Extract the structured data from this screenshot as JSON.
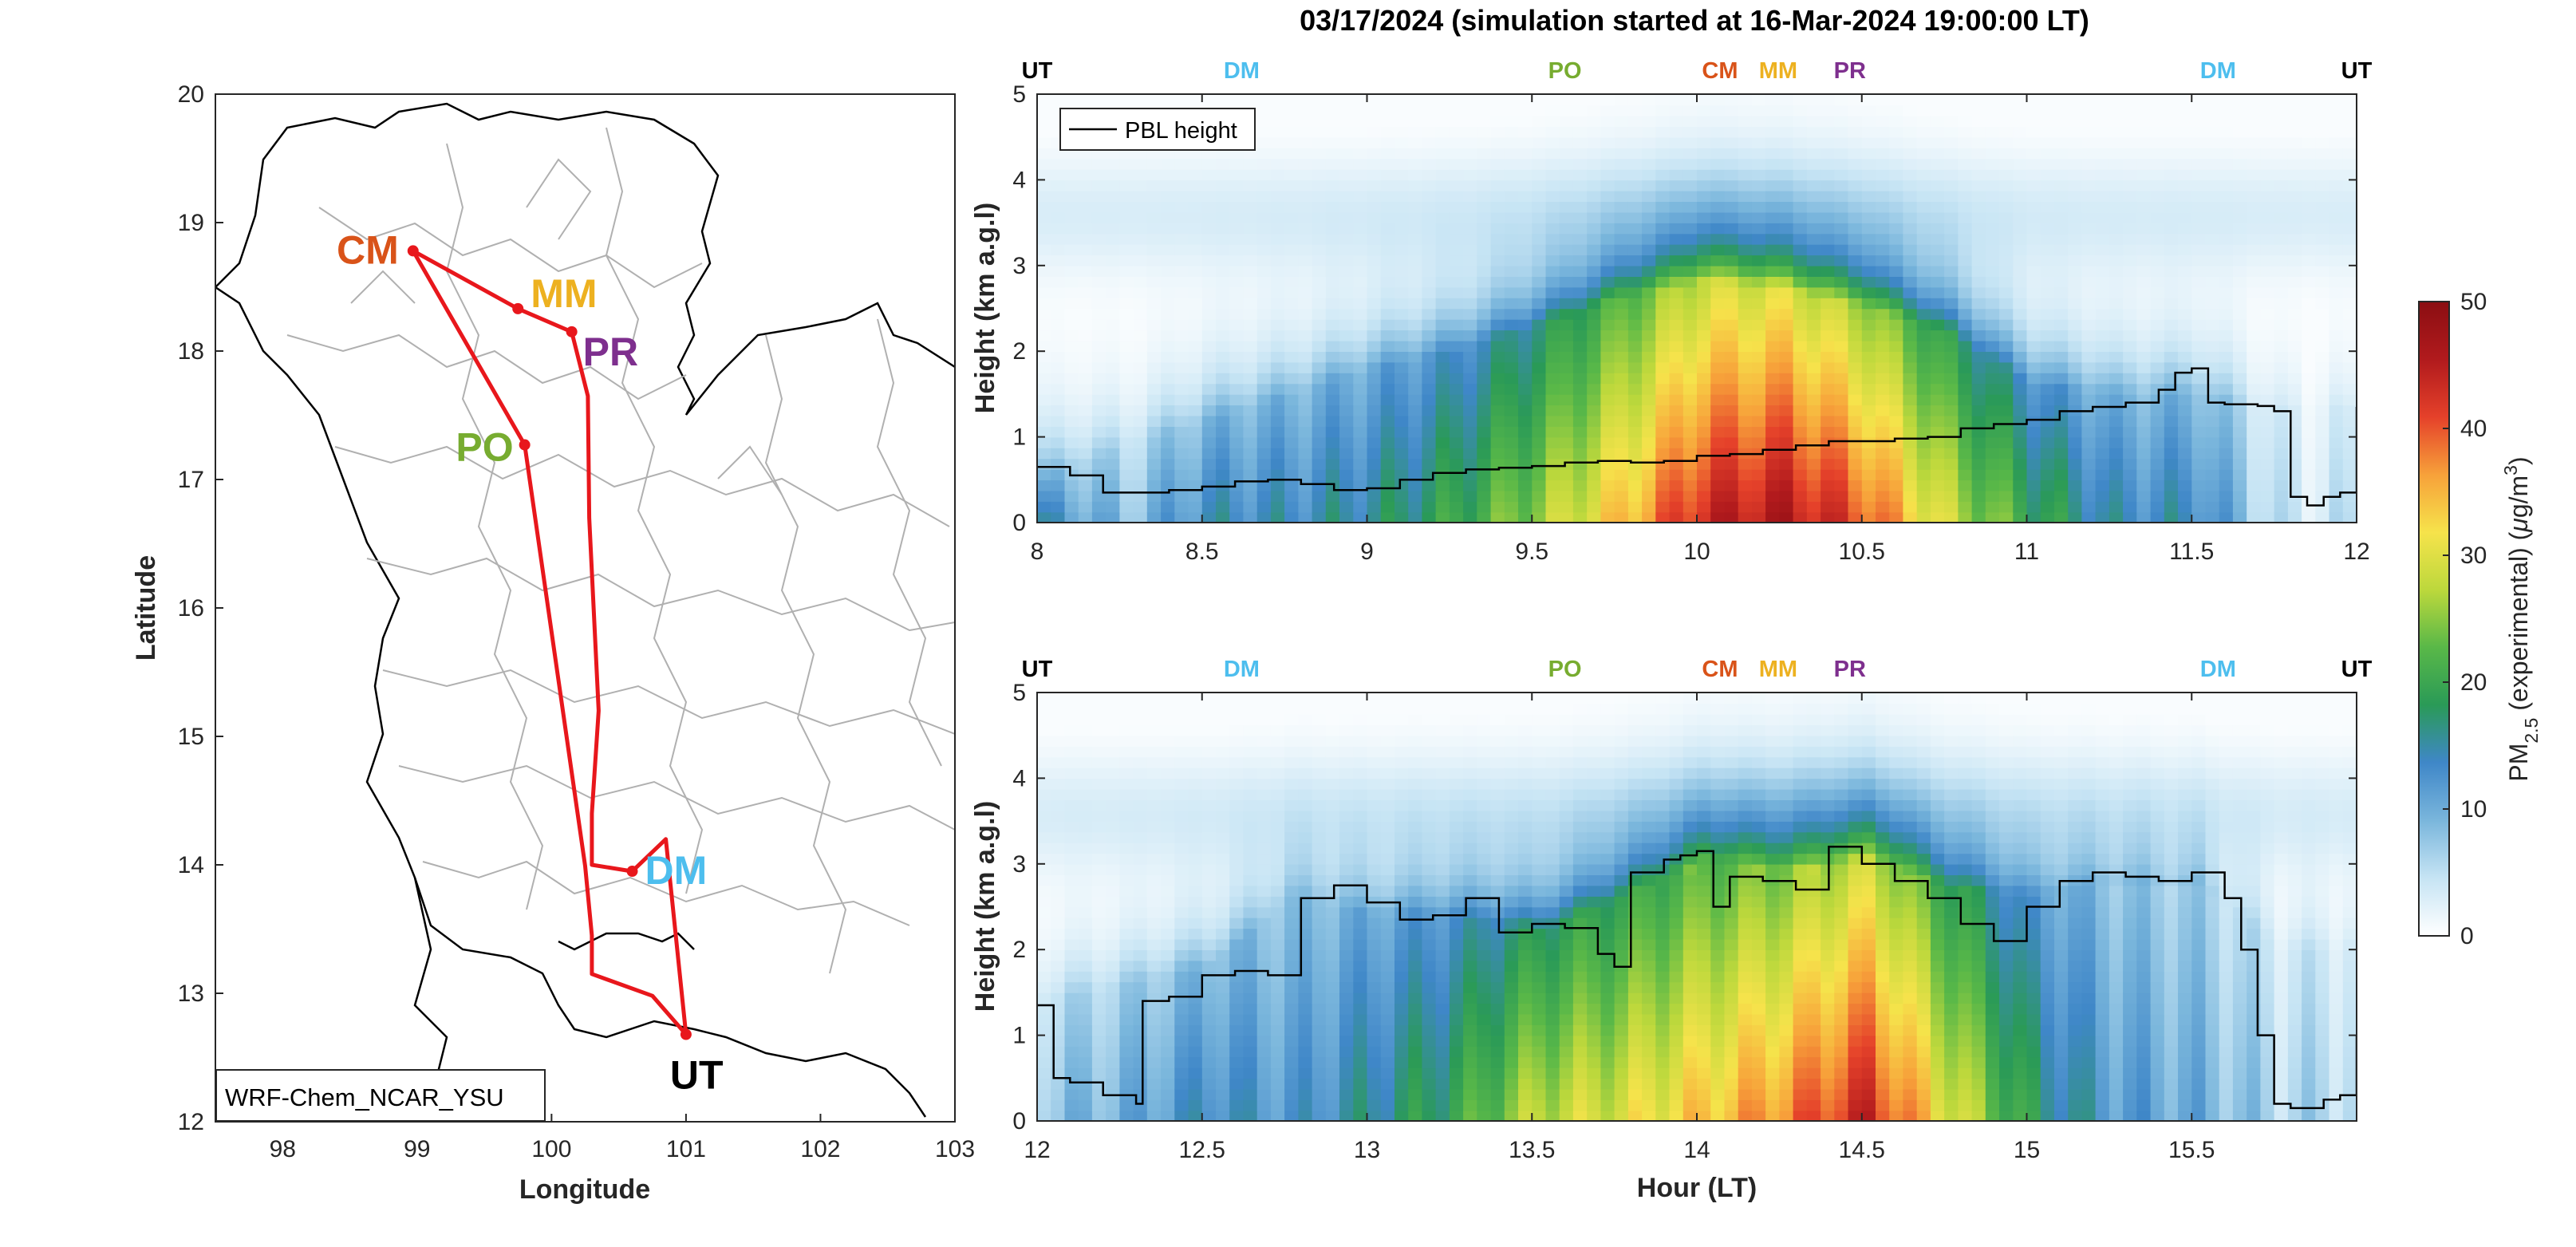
{
  "figure": {
    "title": "03/17/2024 (simulation started at 16-Mar-2024 19:00:00 LT)",
    "model_label": "WRF-Chem_NCAR_YSU"
  },
  "colors": {
    "route": "#e8171c",
    "site_CM": "#d95319",
    "site_MM": "#edb120",
    "site_PR": "#7e2f8e",
    "site_PO": "#77ac30",
    "site_DM": "#4dbeee",
    "site_UT": "#000000",
    "pbl_line": "#000000",
    "province_border": "#b0b0b0",
    "coast": "#000000",
    "colormap": [
      "#ffffff",
      "#c6e4f4",
      "#7ab6dc",
      "#3f87c8",
      "#2a9a57",
      "#59b848",
      "#bcd83c",
      "#f6e34b",
      "#f7a13a",
      "#e5412a",
      "#b11a1d",
      "#8b0e12"
    ]
  },
  "map_labels": [
    {
      "code": "CM",
      "color_key": "site_CM"
    },
    {
      "code": "MM",
      "color_key": "site_MM"
    },
    {
      "code": "PR",
      "color_key": "site_PR"
    },
    {
      "code": "PO",
      "color_key": "site_PO"
    },
    {
      "code": "DM",
      "color_key": "site_DM"
    },
    {
      "code": "UT",
      "color_key": "site_UT"
    }
  ],
  "chart_data": [
    {
      "type": "line",
      "panel": "map",
      "xlabel": "Longitude",
      "ylabel": "Latitude",
      "xlim": [
        97.5,
        103
      ],
      "ylim": [
        12,
        20
      ],
      "xticks": [
        "98",
        "99",
        "100",
        "101",
        "102",
        "103"
      ],
      "yticks": [
        "12",
        "13",
        "14",
        "15",
        "16",
        "17",
        "18",
        "19",
        "20"
      ],
      "route": {
        "lon": [
          101.0,
          100.75,
          100.3,
          100.3,
          100.25,
          99.8,
          98.97,
          99.75,
          100.15,
          100.27,
          100.28,
          100.35,
          100.3,
          100.3,
          100.6,
          100.85,
          101.0
        ],
        "lat": [
          12.68,
          12.98,
          13.15,
          13.45,
          13.99,
          17.27,
          18.78,
          18.33,
          18.15,
          17.65,
          16.7,
          15.2,
          14.4,
          14.0,
          13.95,
          14.2,
          12.68
        ]
      },
      "sites": [
        {
          "code": "CM",
          "lon": 98.97,
          "lat": 18.78
        },
        {
          "code": "MM",
          "lon": 99.75,
          "lat": 18.33
        },
        {
          "code": "PR",
          "lon": 100.15,
          "lat": 18.15
        },
        {
          "code": "PO",
          "lon": 99.8,
          "lat": 17.27
        },
        {
          "code": "DM",
          "lon": 100.6,
          "lat": 13.95
        },
        {
          "code": "UT",
          "lon": 101.0,
          "lat": 12.68
        }
      ]
    },
    {
      "type": "heatmap",
      "panel": "curtain-top",
      "xlabel": "",
      "ylabel": "Height (km a.g.l)",
      "xlim": [
        8,
        12
      ],
      "ylim": [
        0,
        5
      ],
      "xticks": [
        "8",
        "8.5",
        "9",
        "9.5",
        "10",
        "10.5",
        "11",
        "11.5",
        "12"
      ],
      "yticks": [
        "0",
        "1",
        "2",
        "3",
        "4",
        "5"
      ],
      "top_sites": [
        {
          "code": "UT",
          "x": 8.0,
          "color_key": "site_UT"
        },
        {
          "code": "DM",
          "x": 8.62,
          "color_key": "site_DM"
        },
        {
          "code": "PO",
          "x": 9.6,
          "color_key": "site_PO"
        },
        {
          "code": "CM",
          "x": 10.07,
          "color_key": "site_CM"
        },
        {
          "code": "MM",
          "x": 10.3,
          "color_key": "site_MM"
        },
        {
          "code": "PR",
          "x": 10.42,
          "color_key": "site_PR"
        },
        {
          "code": "DM",
          "x": 11.58,
          "color_key": "site_DM"
        },
        {
          "code": "UT",
          "x": 12.0,
          "color_key": "site_UT"
        }
      ],
      "legend": [
        "PBL height"
      ],
      "pbl_height": {
        "x": [
          8.0,
          8.1,
          8.2,
          8.3,
          8.4,
          8.5,
          8.6,
          8.7,
          8.8,
          8.9,
          9.0,
          9.1,
          9.2,
          9.3,
          9.4,
          9.5,
          9.6,
          9.7,
          9.8,
          9.9,
          10.0,
          10.1,
          10.2,
          10.3,
          10.4,
          10.5,
          10.6,
          10.7,
          10.8,
          10.9,
          11.0,
          11.1,
          11.2,
          11.3,
          11.4,
          11.45,
          11.5,
          11.55,
          11.6,
          11.65,
          11.7,
          11.75,
          11.8,
          11.85,
          11.9,
          11.95,
          12.0
        ],
        "y": [
          0.65,
          0.55,
          0.35,
          0.35,
          0.38,
          0.42,
          0.48,
          0.5,
          0.45,
          0.38,
          0.4,
          0.5,
          0.58,
          0.62,
          0.64,
          0.66,
          0.7,
          0.72,
          0.7,
          0.72,
          0.78,
          0.8,
          0.85,
          0.9,
          0.95,
          0.95,
          0.98,
          1.0,
          1.1,
          1.15,
          1.2,
          1.3,
          1.35,
          1.4,
          1.55,
          1.75,
          1.8,
          1.4,
          1.38,
          1.38,
          1.36,
          1.3,
          0.3,
          0.2,
          0.3,
          0.35,
          1.35
        ]
      },
      "pm25_columns": {
        "x": [
          8.0,
          8.25,
          8.5,
          8.75,
          9.0,
          9.25,
          9.5,
          9.75,
          10.0,
          10.25,
          10.5,
          10.75,
          11.0,
          11.25,
          11.5,
          11.75
        ],
        "surface_value": [
          14,
          8,
          14,
          14,
          16,
          20,
          26,
          34,
          44,
          46,
          40,
          28,
          20,
          14,
          14,
          4
        ],
        "layer_top_km": [
          0.5,
          0.9,
          1.2,
          1.5,
          1.8,
          2.0,
          2.3,
          2.6,
          2.8,
          2.7,
          2.5,
          2.2,
          1.6,
          1.5,
          1.5,
          1.3
        ]
      }
    },
    {
      "type": "heatmap",
      "panel": "curtain-bottom",
      "xlabel": "Hour (LT)",
      "ylabel": "Height (km a.g.l)",
      "xlim": [
        12,
        16
      ],
      "ylim": [
        0,
        5
      ],
      "xticks": [
        "12",
        "12.5",
        "13",
        "13.5",
        "14",
        "14.5",
        "15",
        "15.5"
      ],
      "yticks": [
        "0",
        "1",
        "2",
        "3",
        "4",
        "5"
      ],
      "top_sites": [
        {
          "code": "UT",
          "x": 12.0,
          "color_key": "site_UT"
        },
        {
          "code": "DM",
          "x": 12.62,
          "color_key": "site_DM"
        },
        {
          "code": "PO",
          "x": 13.6,
          "color_key": "site_PO"
        },
        {
          "code": "CM",
          "x": 14.07,
          "color_key": "site_CM"
        },
        {
          "code": "MM",
          "x": 14.3,
          "color_key": "site_MM"
        },
        {
          "code": "PR",
          "x": 14.42,
          "color_key": "site_PR"
        },
        {
          "code": "DM",
          "x": 15.58,
          "color_key": "site_DM"
        },
        {
          "code": "UT",
          "x": 16.0,
          "color_key": "site_UT"
        }
      ],
      "pbl_height": {
        "x": [
          12.0,
          12.05,
          12.1,
          12.2,
          12.3,
          12.32,
          12.4,
          12.5,
          12.6,
          12.7,
          12.8,
          12.9,
          13.0,
          13.1,
          13.2,
          13.3,
          13.4,
          13.5,
          13.6,
          13.7,
          13.75,
          13.8,
          13.9,
          13.95,
          14.0,
          14.05,
          14.1,
          14.2,
          14.3,
          14.4,
          14.5,
          14.6,
          14.7,
          14.8,
          14.9,
          15.0,
          15.1,
          15.2,
          15.3,
          15.4,
          15.5,
          15.6,
          15.65,
          15.7,
          15.75,
          15.8,
          15.9,
          15.95,
          16.0
        ],
        "y": [
          1.35,
          0.5,
          0.45,
          0.3,
          0.2,
          1.4,
          1.45,
          1.7,
          1.75,
          1.7,
          2.6,
          2.75,
          2.55,
          2.35,
          2.4,
          2.6,
          2.2,
          2.3,
          2.25,
          1.95,
          1.8,
          2.9,
          3.05,
          3.1,
          3.15,
          2.5,
          2.85,
          2.8,
          2.7,
          3.2,
          3.0,
          2.8,
          2.6,
          2.3,
          2.1,
          2.5,
          2.8,
          2.9,
          2.85,
          2.8,
          2.9,
          2.6,
          2.0,
          1.0,
          0.2,
          0.15,
          0.25,
          0.3,
          1.0
        ]
      },
      "pm25_columns": {
        "x": [
          12.0,
          12.25,
          12.5,
          12.75,
          13.0,
          13.25,
          13.5,
          13.75,
          14.0,
          14.25,
          14.5,
          14.75,
          15.0,
          15.25,
          15.5,
          15.75
        ],
        "surface_value": [
          8,
          10,
          14,
          12,
          16,
          20,
          28,
          30,
          34,
          38,
          44,
          30,
          18,
          12,
          10,
          6
        ],
        "layer_top_km": [
          1.4,
          1.6,
          1.8,
          2.6,
          2.4,
          2.4,
          2.2,
          2.6,
          3.0,
          2.9,
          3.0,
          2.7,
          2.6,
          2.8,
          2.8,
          2.0
        ]
      }
    },
    {
      "type": "heatmap",
      "panel": "colorbar",
      "ylabel": "PM2.5 (experimental) (μg/m3)",
      "ylim": [
        0,
        50
      ],
      "yticks": [
        "0",
        "10",
        "20",
        "30",
        "40",
        "50"
      ]
    }
  ],
  "colorbar": {
    "label_main": "PM",
    "label_sub": "2.5",
    "label_rest": " (experimental) (",
    "label_mu": "μ",
    "label_unit": "g/m",
    "label_sup": "3",
    "label_close": ")"
  }
}
